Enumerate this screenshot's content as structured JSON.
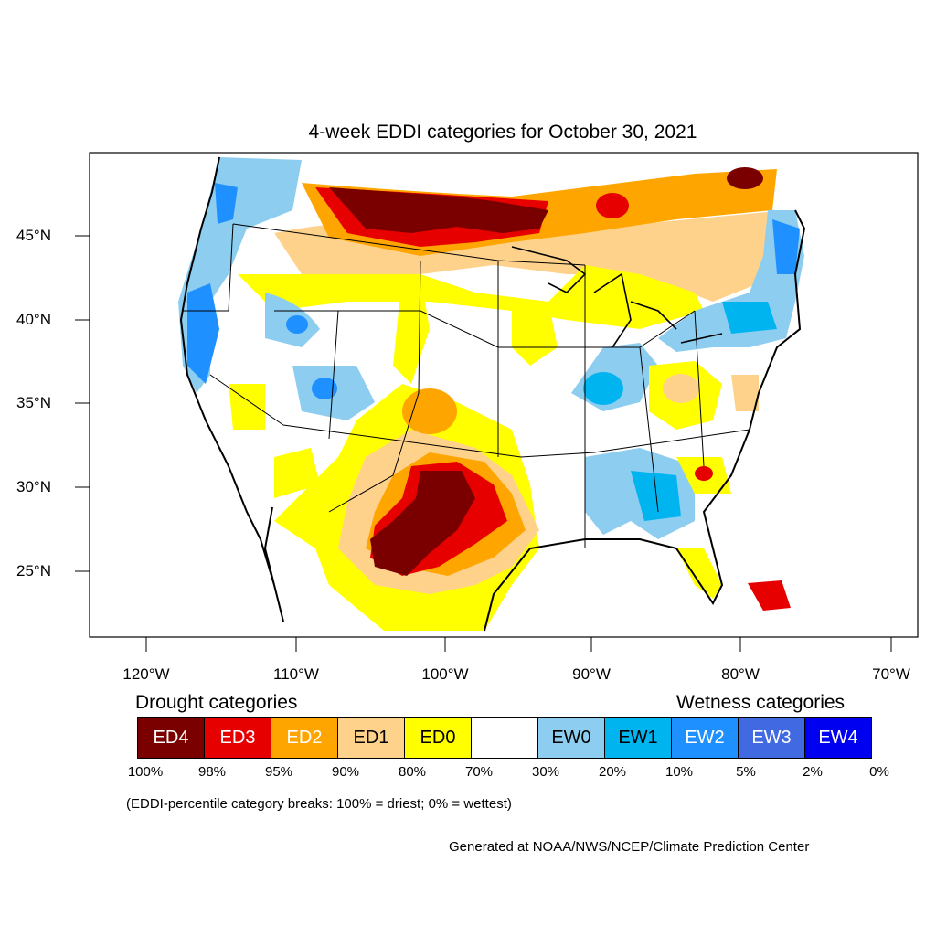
{
  "title": "4-week EDDI categories for October 30, 2021",
  "lat_labels": [
    "45°N",
    "40°N",
    "35°N",
    "30°N",
    "25°N"
  ],
  "lon_labels": [
    "120°W",
    "110°W",
    "100°W",
    "90°W",
    "80°W",
    "70°W"
  ],
  "legend": {
    "drought_heading": "Drought categories",
    "wetness_heading": "Wetness categories",
    "categories": [
      {
        "label": "ED4",
        "color": "#7a0000",
        "text_color": "#ffffff"
      },
      {
        "label": "ED3",
        "color": "#e60000",
        "text_color": "#ffffff"
      },
      {
        "label": "ED2",
        "color": "#ffa500",
        "text_color": "#ffffff"
      },
      {
        "label": "ED1",
        "color": "#ffd28c",
        "text_color": "#000000"
      },
      {
        "label": "ED0",
        "color": "#ffff00",
        "text_color": "#000000"
      },
      {
        "label": "",
        "color": "#ffffff",
        "text_color": "#000000"
      },
      {
        "label": "EW0",
        "color": "#8ccdf0",
        "text_color": "#000000"
      },
      {
        "label": "EW1",
        "color": "#00b4f0",
        "text_color": "#000000"
      },
      {
        "label": "EW2",
        "color": "#1e90ff",
        "text_color": "#ffffff"
      },
      {
        "label": "EW3",
        "color": "#4169e1",
        "text_color": "#ffffff"
      },
      {
        "label": "EW4",
        "color": "#0000f0",
        "text_color": "#ffffff"
      }
    ],
    "breaks": [
      "100%",
      "98%",
      "95%",
      "90%",
      "80%",
      "70%",
      "30%",
      "20%",
      "10%",
      "5%",
      "2%",
      "0%"
    ]
  },
  "note": "(EDDI-percentile category breaks: 100% = driest; 0% = wettest)",
  "credit": "Generated at NOAA/NWS/NCEP/Climate Prediction Center"
}
